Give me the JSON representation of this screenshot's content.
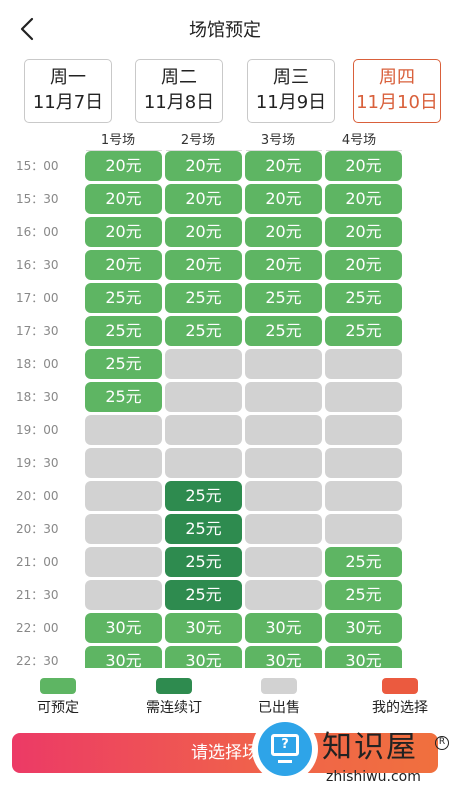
{
  "header": {
    "title": "场馆预定"
  },
  "dates": [
    {
      "weekday": "周一",
      "date": "11月7日",
      "active": false
    },
    {
      "weekday": "周二",
      "date": "11月8日",
      "active": false
    },
    {
      "weekday": "周三",
      "date": "11月9日",
      "active": false
    },
    {
      "weekday": "周四",
      "date": "11月10日",
      "active": true
    }
  ],
  "courts": [
    "1号场",
    "2号场",
    "3号场",
    "4号场"
  ],
  "times": [
    "15：00",
    "15：30",
    "16：00",
    "16：30",
    "17：00",
    "17：30",
    "18：00",
    "18：30",
    "19：00",
    "19：30",
    "20：00",
    "20：30",
    "21：00",
    "21：30",
    "22：00",
    "22：30"
  ],
  "slots": [
    [
      {
        "s": "avail",
        "p": "20元"
      },
      {
        "s": "avail",
        "p": "20元"
      },
      {
        "s": "avail",
        "p": "20元"
      },
      {
        "s": "avail",
        "p": "20元"
      }
    ],
    [
      {
        "s": "avail",
        "p": "20元"
      },
      {
        "s": "avail",
        "p": "20元"
      },
      {
        "s": "avail",
        "p": "20元"
      },
      {
        "s": "avail",
        "p": "20元"
      }
    ],
    [
      {
        "s": "avail",
        "p": "20元"
      },
      {
        "s": "avail",
        "p": "20元"
      },
      {
        "s": "avail",
        "p": "20元"
      },
      {
        "s": "avail",
        "p": "20元"
      }
    ],
    [
      {
        "s": "avail",
        "p": "20元"
      },
      {
        "s": "avail",
        "p": "20元"
      },
      {
        "s": "avail",
        "p": "20元"
      },
      {
        "s": "avail",
        "p": "20元"
      }
    ],
    [
      {
        "s": "avail",
        "p": "25元"
      },
      {
        "s": "avail",
        "p": "25元"
      },
      {
        "s": "avail",
        "p": "25元"
      },
      {
        "s": "avail",
        "p": "25元"
      }
    ],
    [
      {
        "s": "avail",
        "p": "25元"
      },
      {
        "s": "avail",
        "p": "25元"
      },
      {
        "s": "avail",
        "p": "25元"
      },
      {
        "s": "avail",
        "p": "25元"
      }
    ],
    [
      {
        "s": "avail",
        "p": "25元"
      },
      {
        "s": "sold",
        "p": ""
      },
      {
        "s": "sold",
        "p": ""
      },
      {
        "s": "sold",
        "p": ""
      }
    ],
    [
      {
        "s": "avail",
        "p": "25元"
      },
      {
        "s": "sold",
        "p": ""
      },
      {
        "s": "sold",
        "p": ""
      },
      {
        "s": "sold",
        "p": ""
      }
    ],
    [
      {
        "s": "sold",
        "p": ""
      },
      {
        "s": "sold",
        "p": ""
      },
      {
        "s": "sold",
        "p": ""
      },
      {
        "s": "sold",
        "p": ""
      }
    ],
    [
      {
        "s": "sold",
        "p": ""
      },
      {
        "s": "sold",
        "p": ""
      },
      {
        "s": "sold",
        "p": ""
      },
      {
        "s": "sold",
        "p": ""
      }
    ],
    [
      {
        "s": "sold",
        "p": ""
      },
      {
        "s": "renew",
        "p": "25元"
      },
      {
        "s": "sold",
        "p": ""
      },
      {
        "s": "sold",
        "p": ""
      }
    ],
    [
      {
        "s": "sold",
        "p": ""
      },
      {
        "s": "renew",
        "p": "25元"
      },
      {
        "s": "sold",
        "p": ""
      },
      {
        "s": "sold",
        "p": ""
      }
    ],
    [
      {
        "s": "sold",
        "p": ""
      },
      {
        "s": "renew",
        "p": "25元"
      },
      {
        "s": "sold",
        "p": ""
      },
      {
        "s": "avail",
        "p": "25元"
      }
    ],
    [
      {
        "s": "sold",
        "p": ""
      },
      {
        "s": "renew",
        "p": "25元"
      },
      {
        "s": "sold",
        "p": ""
      },
      {
        "s": "avail",
        "p": "25元"
      }
    ],
    [
      {
        "s": "avail",
        "p": "30元"
      },
      {
        "s": "avail",
        "p": "30元"
      },
      {
        "s": "avail",
        "p": "30元"
      },
      {
        "s": "avail",
        "p": "30元"
      }
    ],
    [
      {
        "s": "avail",
        "p": "30元"
      },
      {
        "s": "avail",
        "p": "30元"
      },
      {
        "s": "avail",
        "p": "30元"
      },
      {
        "s": "avail",
        "p": "30元"
      }
    ]
  ],
  "legend": [
    {
      "label": "可预定",
      "color": "#5eb563"
    },
    {
      "label": "需连续订",
      "color": "#2e8b4f"
    },
    {
      "label": "已出售",
      "color": "#d2d2d2"
    },
    {
      "label": "我的选择",
      "color": "#eb5a3f"
    }
  ],
  "cta": {
    "label": "请选择场"
  },
  "watermark": {
    "title": "知识屋",
    "url": "zhishiwu.com",
    "reg": "R",
    "icon": "help-monitor-icon",
    "icon_glyph": "?"
  }
}
